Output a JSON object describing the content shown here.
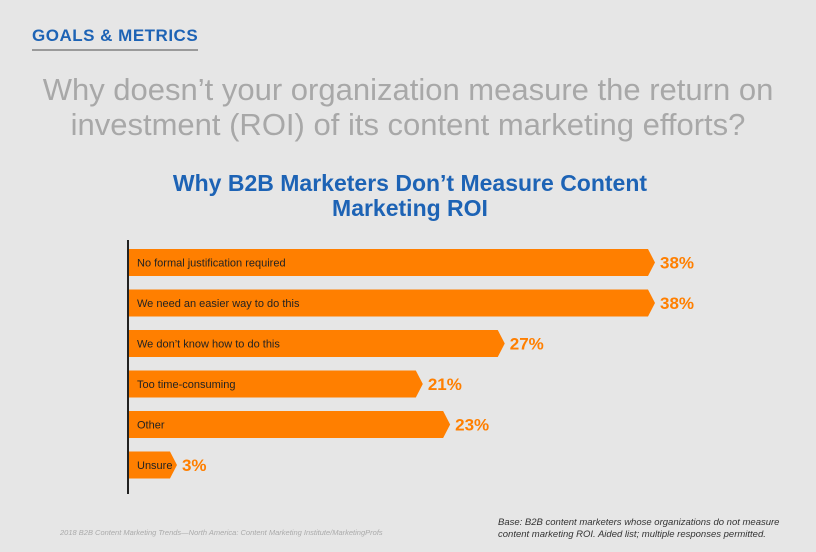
{
  "section_label": "GOALS & METRICS",
  "question": "Why doesn’t your organization measure the return on investment (ROI) of its content marketing efforts?",
  "chart_data": {
    "type": "bar",
    "orientation": "horizontal",
    "title": "Why B2B Marketers Don’t Measure Content Marketing ROI",
    "categories": [
      "No formal justification required",
      "We need an easier way to do this",
      "We don’t know how to do this",
      "Too time-consuming",
      "Other",
      "Unsure"
    ],
    "values": [
      38,
      38,
      27,
      21,
      23,
      3
    ],
    "data_labels": [
      "38%",
      "38%",
      "27%",
      "21%",
      "23%",
      "3%"
    ],
    "unit": "%",
    "xlim": [
      0,
      38
    ],
    "grid": false,
    "bar_color": "#ff7f00",
    "label_color": "#ff7f00"
  },
  "source": "2018 B2B Content Marketing Trends—North America: Content Marketing Institute/MarketingProfs",
  "base_note": [
    "Base: B2B content marketers whose organizations do not measure",
    "content marketing ROI. Aided list; multiple responses permitted."
  ]
}
